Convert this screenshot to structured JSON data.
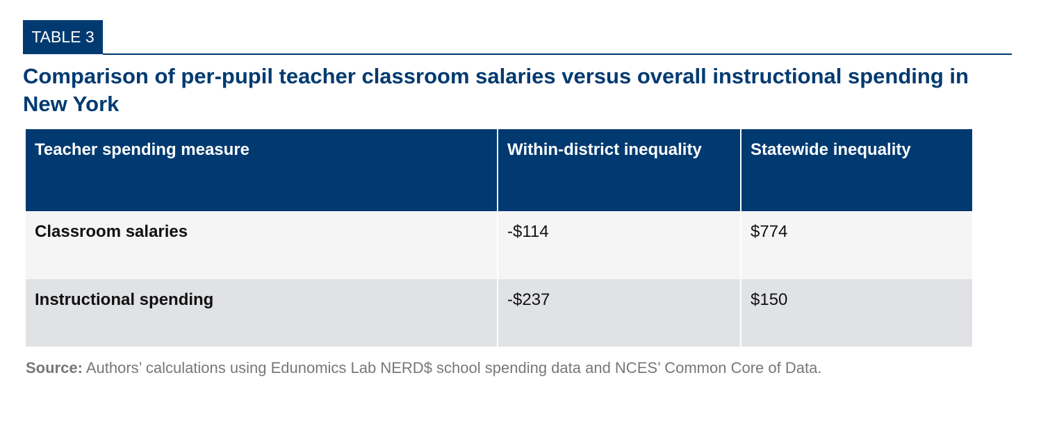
{
  "header": {
    "label": "TABLE 3",
    "title": "Comparison of per-pupil teacher classroom salaries versus overall instructional spending in New York"
  },
  "table": {
    "columns": [
      "Teacher spending measure",
      "Within-district inequality",
      "Statewide inequality"
    ],
    "rows": [
      [
        "Classroom salaries",
        "-$114",
        "$774"
      ],
      [
        "Instructional spending",
        "-$237",
        "$150"
      ]
    ]
  },
  "source": {
    "label": "Source:",
    "text": "Authors’ calculations using Edunomics Lab NERD$ school spending data and NCES’ Common Core of Data."
  }
}
